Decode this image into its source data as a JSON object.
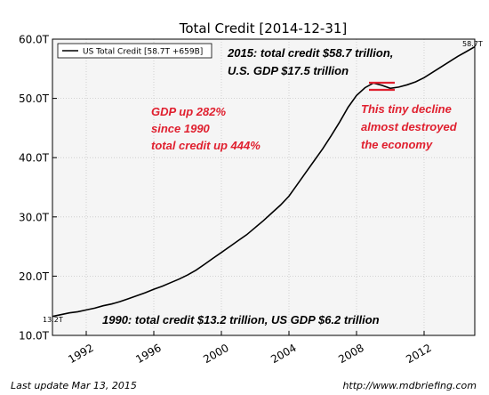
{
  "chart_data": {
    "type": "line",
    "title": "Total Credit  [2014-12-31]",
    "legend": {
      "label": "US Total Credit [58.7T +659B]",
      "placement": "top-left"
    },
    "series": [
      {
        "name": "US Total Credit [58.7T +659B]",
        "color": "#000000",
        "points": [
          [
            1990.0,
            13.2
          ],
          [
            1990.5,
            13.5
          ],
          [
            1991.0,
            13.8
          ],
          [
            1991.5,
            14.0
          ],
          [
            1992.0,
            14.3
          ],
          [
            1992.5,
            14.6
          ],
          [
            1993.0,
            15.0
          ],
          [
            1993.5,
            15.3
          ],
          [
            1994.0,
            15.7
          ],
          [
            1994.5,
            16.2
          ],
          [
            1995.0,
            16.7
          ],
          [
            1995.5,
            17.2
          ],
          [
            1996.0,
            17.8
          ],
          [
            1996.5,
            18.3
          ],
          [
            1997.0,
            18.9
          ],
          [
            1997.5,
            19.5
          ],
          [
            1998.0,
            20.2
          ],
          [
            1998.5,
            21.0
          ],
          [
            1999.0,
            22.0
          ],
          [
            1999.5,
            23.0
          ],
          [
            2000.0,
            24.0
          ],
          [
            2000.5,
            25.0
          ],
          [
            2001.0,
            26.0
          ],
          [
            2001.5,
            27.0
          ],
          [
            2002.0,
            28.2
          ],
          [
            2002.5,
            29.4
          ],
          [
            2003.0,
            30.7
          ],
          [
            2003.5,
            32.0
          ],
          [
            2004.0,
            33.5
          ],
          [
            2004.5,
            35.5
          ],
          [
            2005.0,
            37.5
          ],
          [
            2005.5,
            39.5
          ],
          [
            2006.0,
            41.5
          ],
          [
            2006.5,
            43.7
          ],
          [
            2007.0,
            46.0
          ],
          [
            2007.5,
            48.5
          ],
          [
            2008.0,
            50.5
          ],
          [
            2008.5,
            51.8
          ],
          [
            2009.0,
            52.6
          ],
          [
            2009.5,
            52.2
          ],
          [
            2010.0,
            51.7
          ],
          [
            2010.5,
            51.9
          ],
          [
            2011.0,
            52.3
          ],
          [
            2011.5,
            52.8
          ],
          [
            2012.0,
            53.5
          ],
          [
            2012.5,
            54.4
          ],
          [
            2013.0,
            55.3
          ],
          [
            2013.5,
            56.2
          ],
          [
            2014.0,
            57.1
          ],
          [
            2014.5,
            57.9
          ],
          [
            2014.99,
            58.7
          ]
        ]
      }
    ],
    "x_axis": {
      "range": [
        1990,
        2015
      ],
      "ticks": [
        1992,
        1996,
        2000,
        2004,
        2008,
        2012
      ]
    },
    "y_axis": {
      "range": [
        10,
        60
      ],
      "ticks": [
        10,
        20,
        30,
        40,
        50,
        60
      ],
      "tick_labels": [
        "10.0T",
        "20.0T",
        "30.0T",
        "40.0T",
        "50.0T",
        "60.0T"
      ]
    },
    "grid": true,
    "end_labels": {
      "start": "13.2T",
      "end": "58.7T"
    },
    "annotations": {
      "top_line1": "2015: total credit $58.7 trillion,",
      "top_line2": "U.S. GDP $17.5 trillion",
      "bottom": "1990: total credit $13.2 trillion, US GDP $6.2 trillion",
      "gdp_lines": [
        "GDP up 282%",
        "since 1990",
        "total credit up 444%"
      ],
      "decline_lines": [
        "This tiny decline",
        "almost destroyed",
        "the economy"
      ]
    },
    "colors": {
      "line": "#000000",
      "annotation_red": "#e0202f",
      "grid": "#c8c8c8",
      "plot_bg": "#f5f5f5"
    }
  },
  "footer": {
    "left": "Last update Mar 13, 2015",
    "right": "http://www.mdbriefing.com"
  }
}
